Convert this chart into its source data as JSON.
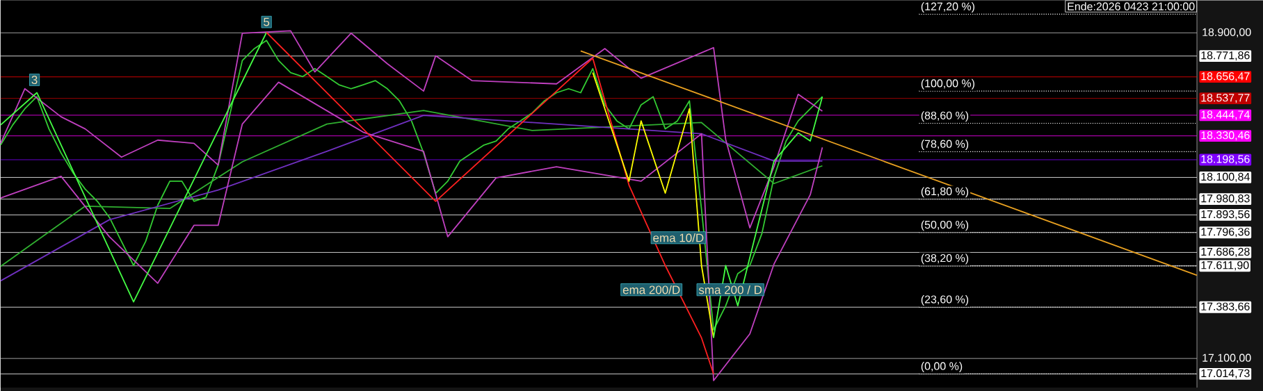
{
  "chart_data": {
    "type": "line",
    "categories": [
      null,
      null,
      null,
      null,
      null,
      null,
      null,
      null,
      null,
      null,
      null,
      null,
      null,
      null,
      null,
      null,
      null,
      null,
      null,
      null,
      null,
      null,
      null,
      null,
      null,
      null,
      null,
      null,
      null,
      null,
      null,
      null,
      null,
      null,
      null,
      null,
      null,
      null,
      null,
      null,
      null,
      null,
      null,
      null,
      null,
      null,
      null,
      null,
      null,
      null,
      null,
      null,
      null,
      null,
      null,
      null,
      null,
      null,
      null,
      null,
      null,
      null,
      null,
      null,
      null,
      null,
      null,
      null,
      null,
      null,
      null,
      null,
      null,
      null,
      null,
      null,
      null,
      null,
      null,
      null,
      null,
      null,
      null,
      null,
      null,
      null,
      null,
      null,
      null,
      null,
      null,
      null,
      null,
      null,
      null,
      null,
      null,
      null,
      null,
      null
    ],
    "ylim": [
      16939,
      19080
    ],
    "yticks": [
      {
        "value": 18900,
        "label": "18.900,00"
      },
      {
        "value": 17100,
        "label": "17.100,00"
      }
    ],
    "grid": "y",
    "legend": false,
    "marker": "none",
    "series": [
      {
        "color": "#33cc33",
        "values": [
          18280,
          18391,
          18480,
          18547,
          18369,
          18236,
          18125,
          18036,
          17969,
          17880,
          17747,
          17614,
          17747,
          17947,
          18080,
          18080,
          17969,
          17991,
          18169,
          18458,
          18747,
          18813,
          18858,
          18747,
          18680,
          18658,
          18702,
          18658,
          18613,
          18591,
          18613,
          18636,
          18591,
          18524,
          18413,
          18236,
          18013,
          18080,
          18191,
          18236,
          18280,
          18302,
          18369,
          18413,
          18458,
          18524,
          18569,
          18591,
          18569,
          18702,
          18502,
          18413,
          18369,
          18502,
          18547,
          18369,
          18413,
          18524,
          17925,
          17258,
          17391,
          17569,
          17614,
          17791,
          18102,
          18302,
          18413,
          18480,
          18547,
          null,
          null,
          null,
          null,
          null,
          null,
          null,
          null,
          null,
          null,
          null,
          null,
          null,
          null,
          null,
          null,
          null,
          null,
          null,
          null,
          null,
          null,
          null,
          null,
          null,
          null,
          null,
          null,
          null,
          null,
          null
        ]
      },
      {
        "color": "#30b030",
        "values": [
          17609,
          null,
          null,
          null,
          null,
          null,
          null,
          17942,
          null,
          null,
          null,
          null,
          null,
          null,
          17929,
          null,
          null,
          null,
          null,
          null,
          18187,
          null,
          null,
          null,
          null,
          null,
          null,
          18396,
          null,
          null,
          null,
          null,
          null,
          null,
          null,
          18471,
          null,
          null,
          null,
          null,
          null,
          null,
          null,
          null,
          18360,
          null,
          null,
          null,
          null,
          null,
          null,
          null,
          null,
          null,
          null,
          null,
          null,
          null,
          18404,
          null,
          null,
          null,
          null,
          null,
          18067,
          null,
          null,
          null,
          18165,
          null,
          null,
          null,
          null,
          null,
          null,
          null,
          null,
          null,
          null,
          null,
          null,
          null,
          null,
          null,
          null,
          null,
          null,
          null,
          null,
          null,
          null,
          null,
          null,
          null,
          null,
          null,
          null,
          null,
          null,
          null
        ]
      },
      {
        "color": "#7030c0",
        "values": [
          17529,
          null,
          null,
          null,
          null,
          null,
          null,
          null,
          null,
          17867,
          null,
          null,
          null,
          null,
          null,
          null,
          null,
          null,
          18031,
          null,
          null,
          null,
          null,
          null,
          null,
          null,
          null,
          18245,
          null,
          null,
          null,
          null,
          null,
          null,
          null,
          18444,
          null,
          null,
          null,
          null,
          null,
          null,
          null,
          null,
          18404,
          null,
          null,
          null,
          null,
          null,
          null,
          null,
          null,
          null,
          null,
          null,
          null,
          null,
          18342,
          null,
          null,
          null,
          null,
          null,
          18191,
          null,
          null,
          null,
          18191,
          null,
          null,
          null,
          null,
          null,
          null,
          null,
          null,
          null,
          null,
          null,
          null,
          null,
          null,
          null,
          null,
          null,
          null,
          null,
          null,
          null,
          null,
          null,
          null,
          null,
          null,
          null,
          null,
          null,
          null,
          null
        ]
      },
      {
        "color": "#c040c0",
        "values": [
          18289,
          null,
          18591,
          null,
          null,
          18436,
          null,
          18369,
          null,
          null,
          18213,
          null,
          null,
          18307,
          null,
          null,
          18289,
          null,
          18169,
          null,
          18898,
          null,
          null,
          null,
          18911,
          null,
          18684,
          null,
          null,
          18898,
          null,
          null,
          18729,
          null,
          null,
          18578,
          18773,
          null,
          null,
          18636,
          null,
          null,
          null,
          null,
          null,
          null,
          18618,
          null,
          null,
          null,
          18813,
          null,
          null,
          18649,
          null,
          null,
          null,
          null,
          null,
          18818,
          18311,
          null,
          17822,
          null,
          18160,
          null,
          18560,
          null,
          18467,
          null,
          null,
          null,
          null,
          null,
          null,
          null,
          null,
          null,
          null,
          null,
          null,
          null,
          null,
          null,
          null,
          null,
          null,
          null,
          null,
          null,
          null,
          null,
          null,
          null,
          null,
          null,
          null,
          null,
          null,
          null
        ]
      },
      {
        "color": "#c040c0",
        "values": [
          17987,
          null,
          null,
          null,
          null,
          18107,
          null,
          null,
          null,
          17773,
          null,
          null,
          null,
          17516,
          null,
          null,
          17836,
          null,
          17836,
          null,
          18396,
          null,
          null,
          18627,
          null,
          null,
          null,
          null,
          null,
          null,
          18351,
          null,
          null,
          null,
          null,
          18245,
          null,
          17773,
          null,
          null,
          null,
          18098,
          null,
          null,
          null,
          null,
          18160,
          null,
          null,
          null,
          null,
          null,
          null,
          18080,
          null,
          null,
          null,
          null,
          18342,
          16978,
          null,
          null,
          17236,
          null,
          17622,
          null,
          null,
          18005,
          18267,
          null,
          null,
          null,
          null,
          null,
          null,
          null,
          null,
          null,
          null,
          null,
          null,
          null,
          null,
          null,
          null,
          null,
          null,
          null,
          null,
          null,
          null,
          null,
          null,
          null,
          null,
          null,
          null,
          null,
          null,
          null
        ]
      },
      {
        "color": "#44ff44",
        "values": [
          18391,
          null,
          null,
          18569,
          null,
          null,
          null,
          null,
          null,
          null,
          null,
          17413,
          null,
          null,
          null,
          null,
          null,
          null,
          null,
          null,
          null,
          null,
          18902,
          null,
          null,
          null,
          null,
          null,
          null,
          null,
          null,
          null,
          null,
          null,
          null,
          null,
          null,
          null,
          null,
          null,
          null,
          null,
          null,
          null,
          null,
          null,
          null,
          null,
          null,
          null,
          null,
          null,
          null,
          null,
          null,
          null,
          null,
          null,
          null,
          null,
          null,
          null,
          null,
          null,
          null,
          null,
          null,
          null,
          null,
          null,
          null,
          null,
          null,
          null,
          null,
          null,
          null,
          null,
          null,
          null,
          null,
          null,
          null,
          null,
          null,
          null,
          null,
          null,
          null,
          null,
          null,
          null,
          null,
          null,
          null,
          null,
          null,
          null,
          null,
          null
        ]
      },
      {
        "color": "#ff2020",
        "values": [
          null,
          null,
          null,
          null,
          null,
          null,
          null,
          null,
          null,
          null,
          null,
          null,
          null,
          null,
          null,
          null,
          null,
          null,
          null,
          null,
          null,
          null,
          18902,
          null,
          null,
          null,
          null,
          null,
          null,
          null,
          null,
          null,
          null,
          null,
          null,
          null,
          17969,
          null,
          null,
          null,
          null,
          null,
          null,
          null,
          null,
          null,
          null,
          null,
          null,
          18760,
          null,
          null,
          18058,
          null,
          null,
          17614,
          null,
          null,
          17214,
          17014,
          null,
          null,
          null,
          null,
          null,
          null,
          null,
          null,
          null,
          null,
          null,
          null,
          null,
          null,
          null,
          null,
          null,
          null,
          null,
          null,
          null,
          null,
          null,
          null,
          null,
          null,
          null,
          null,
          null,
          null,
          null,
          null,
          null,
          null,
          null,
          null,
          null,
          null,
          null,
          null
        ]
      },
      {
        "color": "#ffff00",
        "values": [
          null,
          null,
          null,
          null,
          null,
          null,
          null,
          null,
          null,
          null,
          null,
          null,
          null,
          null,
          null,
          null,
          null,
          null,
          null,
          null,
          null,
          null,
          null,
          null,
          null,
          null,
          null,
          null,
          null,
          null,
          null,
          null,
          null,
          null,
          null,
          null,
          null,
          null,
          null,
          null,
          null,
          null,
          null,
          null,
          null,
          null,
          null,
          null,
          null,
          18680,
          null,
          null,
          18080,
          18413,
          null,
          18014,
          null,
          18480,
          17614,
          17214,
          null,
          null,
          null,
          null,
          null,
          null,
          null,
          null,
          null,
          null,
          null,
          null,
          null,
          null,
          null,
          null,
          null,
          null,
          null,
          null,
          null,
          null,
          null,
          null,
          null,
          null,
          null,
          null,
          null,
          null,
          null,
          null,
          null,
          null,
          null,
          null,
          null,
          null,
          null,
          null
        ]
      },
      {
        "color": "#44ff44",
        "values": [
          null,
          null,
          null,
          null,
          null,
          null,
          null,
          null,
          null,
          null,
          null,
          null,
          null,
          null,
          null,
          null,
          null,
          null,
          null,
          null,
          null,
          null,
          null,
          null,
          null,
          null,
          null,
          null,
          null,
          null,
          null,
          null,
          null,
          null,
          null,
          null,
          null,
          null,
          null,
          null,
          null,
          null,
          null,
          null,
          null,
          null,
          null,
          null,
          null,
          null,
          null,
          null,
          null,
          null,
          null,
          null,
          null,
          null,
          null,
          17214,
          17614,
          17391,
          null,
          17925,
          18191,
          null,
          18347,
          18302,
          18547,
          null,
          null,
          null,
          null,
          null,
          null,
          null,
          null,
          null,
          null,
          null,
          null,
          null,
          null,
          null,
          null,
          null,
          null,
          null,
          null,
          null,
          null,
          null,
          null,
          null,
          null,
          null,
          null,
          null,
          null,
          null
        ]
      },
      {
        "color": "#e8a020",
        "values": [
          null,
          null,
          null,
          null,
          null,
          null,
          null,
          null,
          null,
          null,
          null,
          null,
          null,
          null,
          null,
          null,
          null,
          null,
          null,
          null,
          null,
          null,
          null,
          null,
          null,
          null,
          null,
          null,
          null,
          null,
          null,
          null,
          null,
          null,
          null,
          null,
          null,
          null,
          null,
          null,
          null,
          null,
          null,
          null,
          null,
          null,
          null,
          null,
          18800,
          null,
          null,
          null,
          null,
          null,
          null,
          null,
          null,
          null,
          null,
          null,
          null,
          null,
          null,
          null,
          null,
          null,
          null,
          null,
          null,
          null,
          null,
          null,
          null,
          null,
          null,
          null,
          null,
          null,
          null,
          null,
          null,
          null,
          null,
          null,
          null,
          null,
          null,
          null,
          null,
          null,
          null,
          null,
          null,
          null,
          null,
          null,
          null,
          null,
          null,
          17560
        ]
      }
    ],
    "ref_lines": [
      {
        "axis": "y",
        "value": 19003,
        "color": "#ffffff",
        "line_style": "dotted"
      },
      {
        "axis": "y",
        "value": 18578,
        "color": "#ffffff",
        "line_style": "dotted"
      },
      {
        "axis": "y",
        "value": 18400,
        "color": "#ffffff",
        "line_style": "dotted"
      },
      {
        "axis": "y",
        "value": 18243,
        "color": "#ffffff",
        "line_style": "dotted"
      },
      {
        "axis": "y",
        "value": 17980.83,
        "color": "#ffffff",
        "line_style": "dotted"
      },
      {
        "axis": "y",
        "value": 17796.36,
        "color": "#ffffff",
        "line_style": "dotted"
      },
      {
        "axis": "y",
        "value": 17611.9,
        "color": "#ffffff",
        "line_style": "dotted"
      },
      {
        "axis": "y",
        "value": 17383.66,
        "color": "#ffffff",
        "line_style": "dotted"
      },
      {
        "axis": "y",
        "value": 17014.73,
        "color": "#ffffff",
        "line_style": "dotted"
      },
      {
        "axis": "y",
        "value": 18771.86,
        "label": "18.771,86",
        "color": "#ffffff",
        "line_style": "solid"
      },
      {
        "axis": "y",
        "value": 18656.47,
        "label": "18.656,47",
        "color": "#ff0000",
        "line_style": "solid"
      },
      {
        "axis": "y",
        "value": 18537.77,
        "label": "18.537,77",
        "color": "#c00000",
        "line_style": "solid"
      },
      {
        "axis": "y",
        "value": 18444.74,
        "label": "18.444,74",
        "color": "#ff00ff",
        "line_style": "solid"
      },
      {
        "axis": "y",
        "value": 18330.46,
        "label": "18.330,46",
        "color": "#ff00ff",
        "line_style": "solid"
      },
      {
        "axis": "y",
        "value": 18198.56,
        "label": "18.198,56",
        "color": "#7f00ff",
        "line_style": "solid"
      },
      {
        "axis": "y",
        "value": 18100.84,
        "label": "18.100,84",
        "color": "#ffffff",
        "line_style": "solid"
      },
      {
        "axis": "y",
        "value": 17980.83,
        "label": "17.980,83",
        "color": "#ffffff",
        "line_style": "solid"
      },
      {
        "axis": "y",
        "value": 17893.56,
        "label": "17.893,56",
        "color": "#ffffff",
        "line_style": "solid"
      },
      {
        "axis": "y",
        "value": 17796.36,
        "label": "17.796,36",
        "color": "#ffffff",
        "line_style": "solid"
      },
      {
        "axis": "y",
        "value": 17686.28,
        "label": "17.686,28",
        "color": "#ffffff",
        "line_style": "solid"
      },
      {
        "axis": "y",
        "value": 17611.9,
        "label": "17.611,90",
        "color": "#ffffff",
        "line_style": "solid"
      },
      {
        "axis": "y",
        "value": 17383.66,
        "label": "17.383,66",
        "color": "#ffffff",
        "line_style": "solid"
      },
      {
        "axis": "y",
        "value": 17014.73,
        "label": "17.014,73",
        "color": "#ffffff",
        "line_style": "solid"
      }
    ],
    "annotations": [
      {
        "text": "3",
        "y": 18640
      },
      {
        "text": "5",
        "y": 18960
      },
      "ema 10/D",
      "ema 200/D",
      "sma 200 / D",
      "Ende:2026 0423 21:00:00",
      {
        "text": "(127,20 %)",
        "y": 19003
      },
      {
        "text": "(100,00 %)",
        "y": 18578
      },
      {
        "text": "(88,60 %)",
        "y": 18400
      },
      {
        "text": "(78,60 %)",
        "y": 18243
      },
      {
        "text": "(61,80 %)",
        "y": 17980.83
      },
      {
        "text": "(50,00 %)",
        "y": 17796.36
      },
      {
        "text": "(38,20 %)",
        "y": 17611.9
      },
      {
        "text": "(23,60 %)",
        "y": 17383.66
      },
      {
        "text": "(0,00 %)",
        "y": 17014.73
      }
    ]
  }
}
